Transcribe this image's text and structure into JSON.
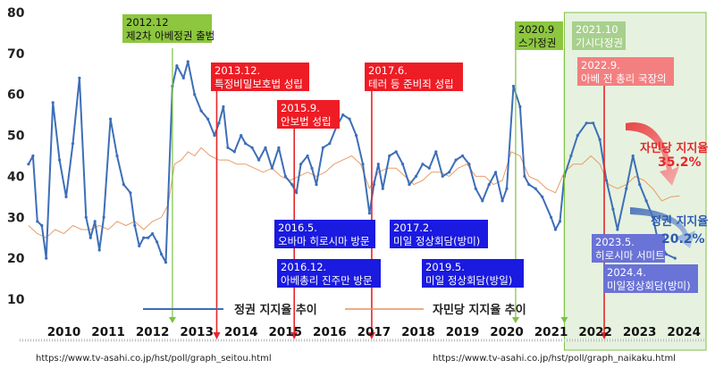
{
  "chart_data": {
    "type": "line",
    "title": "",
    "xlabel": "",
    "ylabel": "",
    "ylim": [
      10,
      80
    ],
    "y_ticks": [
      10,
      20,
      30,
      40,
      50,
      60,
      70,
      80
    ],
    "x_range": [
      2009.5,
      2025.0
    ],
    "year_labels": [
      "2010",
      "2011",
      "2012",
      "2013",
      "2014",
      "2015",
      "2016",
      "2017",
      "2018",
      "2019",
      "2020",
      "2021",
      "2022",
      "2023",
      "2024"
    ],
    "grid": false,
    "series": [
      {
        "name": "정권 지지율 추이",
        "color": "#3d6eb8",
        "points": [
          [
            2009.7,
            43
          ],
          [
            2009.8,
            45
          ],
          [
            2009.9,
            29
          ],
          [
            2010.0,
            28
          ],
          [
            2010.1,
            20
          ],
          [
            2010.25,
            58
          ],
          [
            2010.4,
            44
          ],
          [
            2010.55,
            35
          ],
          [
            2010.7,
            48
          ],
          [
            2010.85,
            64
          ],
          [
            2011.0,
            30
          ],
          [
            2011.1,
            25
          ],
          [
            2011.2,
            29
          ],
          [
            2011.3,
            22
          ],
          [
            2011.4,
            30
          ],
          [
            2011.55,
            54
          ],
          [
            2011.7,
            45
          ],
          [
            2011.85,
            38
          ],
          [
            2012.0,
            36
          ],
          [
            2012.1,
            28
          ],
          [
            2012.2,
            23
          ],
          [
            2012.3,
            25
          ],
          [
            2012.4,
            25
          ],
          [
            2012.5,
            26
          ],
          [
            2012.6,
            24
          ],
          [
            2012.7,
            21
          ],
          [
            2012.8,
            19
          ],
          [
            2012.95,
            62
          ],
          [
            2013.05,
            67
          ],
          [
            2013.2,
            64
          ],
          [
            2013.3,
            68
          ],
          [
            2013.45,
            60
          ],
          [
            2013.6,
            56
          ],
          [
            2013.75,
            54
          ],
          [
            2013.9,
            50
          ],
          [
            2014.0,
            53
          ],
          [
            2014.1,
            57
          ],
          [
            2014.2,
            47
          ],
          [
            2014.35,
            46
          ],
          [
            2014.5,
            50
          ],
          [
            2014.6,
            48
          ],
          [
            2014.75,
            47
          ],
          [
            2014.9,
            44
          ],
          [
            2015.05,
            47
          ],
          [
            2015.2,
            42
          ],
          [
            2015.35,
            47
          ],
          [
            2015.5,
            40
          ],
          [
            2015.65,
            38
          ],
          [
            2015.75,
            36
          ],
          [
            2015.85,
            43
          ],
          [
            2016.0,
            45
          ],
          [
            2016.1,
            42
          ],
          [
            2016.2,
            38
          ],
          [
            2016.35,
            47
          ],
          [
            2016.5,
            48
          ],
          [
            2016.65,
            52
          ],
          [
            2016.8,
            55
          ],
          [
            2016.95,
            54
          ],
          [
            2017.1,
            50
          ],
          [
            2017.25,
            43
          ],
          [
            2017.4,
            31
          ],
          [
            2017.5,
            38
          ],
          [
            2017.6,
            43
          ],
          [
            2017.7,
            37
          ],
          [
            2017.85,
            45
          ],
          [
            2018.0,
            46
          ],
          [
            2018.15,
            43
          ],
          [
            2018.3,
            38
          ],
          [
            2018.45,
            40
          ],
          [
            2018.6,
            43
          ],
          [
            2018.75,
            42
          ],
          [
            2018.9,
            46
          ],
          [
            2019.05,
            40
          ],
          [
            2019.2,
            41
          ],
          [
            2019.35,
            44
          ],
          [
            2019.5,
            45
          ],
          [
            2019.65,
            43
          ],
          [
            2019.8,
            37
          ],
          [
            2019.95,
            34
          ],
          [
            2020.1,
            38
          ],
          [
            2020.25,
            41
          ],
          [
            2020.4,
            34
          ],
          [
            2020.5,
            37
          ],
          [
            2020.65,
            62
          ],
          [
            2020.8,
            57
          ],
          [
            2020.9,
            40
          ],
          [
            2021.0,
            38
          ],
          [
            2021.15,
            37
          ],
          [
            2021.3,
            35
          ],
          [
            2021.5,
            30
          ],
          [
            2021.6,
            27
          ],
          [
            2021.7,
            29
          ],
          [
            2021.8,
            40
          ],
          [
            2021.95,
            45
          ],
          [
            2022.1,
            50
          ],
          [
            2022.3,
            53
          ],
          [
            2022.45,
            53
          ],
          [
            2022.6,
            49
          ],
          [
            2022.75,
            39
          ],
          [
            2022.9,
            32
          ],
          [
            2023.0,
            27
          ],
          [
            2023.2,
            37
          ],
          [
            2023.35,
            45
          ],
          [
            2023.5,
            38
          ],
          [
            2023.65,
            34
          ],
          [
            2023.8,
            30
          ],
          [
            2023.9,
            25
          ],
          [
            2024.0,
            23
          ],
          [
            2024.1,
            21
          ],
          [
            2024.3,
            20
          ]
        ]
      },
      {
        "name": "자민당 지지율 추이",
        "color": "#e6925a",
        "points": [
          [
            2009.7,
            28
          ],
          [
            2009.9,
            26
          ],
          [
            2010.1,
            25
          ],
          [
            2010.3,
            27
          ],
          [
            2010.5,
            26
          ],
          [
            2010.7,
            28
          ],
          [
            2010.9,
            27
          ],
          [
            2011.1,
            27
          ],
          [
            2011.3,
            28
          ],
          [
            2011.5,
            27
          ],
          [
            2011.7,
            29
          ],
          [
            2011.9,
            28
          ],
          [
            2012.1,
            29
          ],
          [
            2012.3,
            27
          ],
          [
            2012.5,
            29
          ],
          [
            2012.7,
            30
          ],
          [
            2012.85,
            33
          ],
          [
            2013.0,
            43
          ],
          [
            2013.15,
            44
          ],
          [
            2013.3,
            46
          ],
          [
            2013.45,
            45
          ],
          [
            2013.6,
            47
          ],
          [
            2013.8,
            45
          ],
          [
            2014.0,
            44
          ],
          [
            2014.2,
            44
          ],
          [
            2014.4,
            43
          ],
          [
            2014.6,
            43
          ],
          [
            2014.8,
            42
          ],
          [
            2015.0,
            41
          ],
          [
            2015.2,
            42
          ],
          [
            2015.4,
            40
          ],
          [
            2015.6,
            39
          ],
          [
            2015.8,
            40
          ],
          [
            2016.0,
            41
          ],
          [
            2016.2,
            40
          ],
          [
            2016.4,
            41
          ],
          [
            2016.6,
            43
          ],
          [
            2016.8,
            44
          ],
          [
            2017.0,
            45
          ],
          [
            2017.2,
            43
          ],
          [
            2017.4,
            37
          ],
          [
            2017.6,
            41
          ],
          [
            2017.8,
            42
          ],
          [
            2018.0,
            42
          ],
          [
            2018.2,
            40
          ],
          [
            2018.4,
            38
          ],
          [
            2018.6,
            39
          ],
          [
            2018.8,
            41
          ],
          [
            2019.0,
            41
          ],
          [
            2019.2,
            40
          ],
          [
            2019.4,
            42
          ],
          [
            2019.6,
            43
          ],
          [
            2019.8,
            40
          ],
          [
            2020.0,
            40
          ],
          [
            2020.2,
            38
          ],
          [
            2020.4,
            39
          ],
          [
            2020.6,
            46
          ],
          [
            2020.8,
            45
          ],
          [
            2021.0,
            40
          ],
          [
            2021.2,
            39
          ],
          [
            2021.4,
            37
          ],
          [
            2021.6,
            36
          ],
          [
            2021.8,
            41
          ],
          [
            2022.0,
            43
          ],
          [
            2022.2,
            43
          ],
          [
            2022.4,
            45
          ],
          [
            2022.6,
            43
          ],
          [
            2022.8,
            38
          ],
          [
            2023.0,
            37
          ],
          [
            2023.2,
            38
          ],
          [
            2023.4,
            40
          ],
          [
            2023.6,
            39
          ],
          [
            2023.8,
            37
          ],
          [
            2024.0,
            34
          ],
          [
            2024.2,
            35
          ],
          [
            2024.4,
            35.2
          ]
        ]
      }
    ],
    "events": [
      {
        "label": "2012.12\n제2차 아베정권 출범",
        "x": 2012.95,
        "line_color": "#7cc242",
        "box_color": "#8dc63f",
        "text_color": "#111111"
      },
      {
        "label": "2013.12.\n특정비밀보호법 성립",
        "x": 2013.95,
        "line_color": "#e8262a",
        "box_color": "#ee1c25",
        "text_color": "#ffffff"
      },
      {
        "label": "2015.9.\n안보법 성립",
        "x": 2015.7,
        "line_color": "#e8262a",
        "box_color": "#ee1c25",
        "text_color": "#ffffff"
      },
      {
        "label": "2017.6.\n테러 등 준비죄 성립",
        "x": 2017.45,
        "line_color": "#e8262a",
        "box_color": "#ee1c25",
        "text_color": "#ffffff"
      },
      {
        "label": "2020.9\n스가정권",
        "x": 2020.7,
        "line_color": "#7cc242",
        "box_color": "#8dc63f",
        "text_color": "#111111"
      },
      {
        "label": "2021.10\n기시다정권",
        "x": 2021.8,
        "line_color": "#7cc242",
        "box_color": "#a8d08d",
        "text_color": "#ffffff"
      },
      {
        "label": "2022.9.\n아베 전 총리 국장의",
        "x": 2022.7,
        "line_color": "#e8262a",
        "box_color": "#f47f80",
        "text_color": "#ffffff"
      }
    ],
    "blue_labels": [
      {
        "label": "2016.5.\n오바마 히로시마 방문",
        "x": 2016.4,
        "y": 24
      },
      {
        "label": "2016.12.\n아베총리 진주만 방문",
        "x": 2016.95,
        "y": 15
      },
      {
        "label": "2017.2.\n미일 정상회담(방미)",
        "x": 2017.9,
        "y": 24
      },
      {
        "label": "2019.5.\n미일 정상회담(방일)",
        "x": 2019.4,
        "y": 15
      },
      {
        "label": "2023.5.\n히로시마 서미트",
        "x": 2023.4,
        "y": 19.5
      },
      {
        "label": "2024.4.\n미일정상회담(방미)",
        "x": 2024.3,
        "y": 13.5
      }
    ],
    "shaded_region": {
      "from": 2021.8,
      "to": 2025.0,
      "color": "#e6f2df"
    },
    "final_values": [
      {
        "series": "자민당 지지율",
        "label": "자민당 지지율",
        "value": "35.2%",
        "color": "#e8262a"
      },
      {
        "series": "정권 지지율",
        "label": "정권 지지율",
        "value": "20.2%",
        "color": "#2b5bb0"
      }
    ],
    "sources": [
      "https://www.tv-asahi.co.jp/hst/poll/graph_seitou.html",
      "https://www.tv-asahi.co.jp/hst/poll/graph_naikaku.html"
    ]
  }
}
